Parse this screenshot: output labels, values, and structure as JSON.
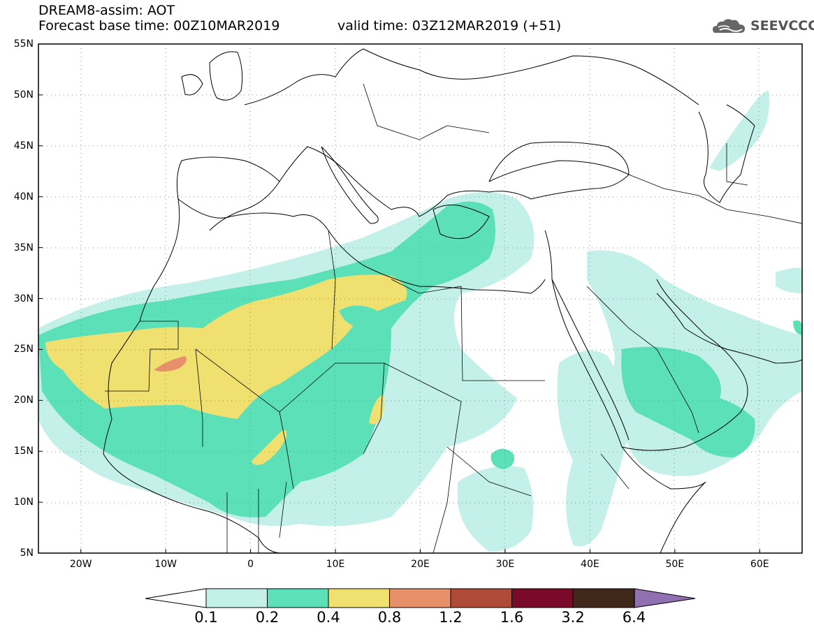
{
  "header": {
    "title": "DREAM8-assim: AOT",
    "base_time": "Forecast base time: 00Z10MAR2019",
    "valid_time": "valid time: 03Z12MAR2019 (+51)",
    "logo_text": "SEEVCCC"
  },
  "map": {
    "variable": "AOT",
    "lat_range": [
      5,
      55
    ],
    "lon_range": [
      -25,
      65
    ],
    "lat_labels": [
      "55N",
      "50N",
      "45N",
      "40N",
      "35N",
      "30N",
      "25N",
      "20N",
      "15N",
      "10N",
      "5N"
    ],
    "lat_values": [
      55,
      50,
      45,
      40,
      35,
      30,
      25,
      20,
      15,
      10,
      5
    ],
    "lon_labels": [
      "20W",
      "10W",
      "0",
      "10E",
      "20E",
      "30E",
      "40E",
      "50E",
      "60E"
    ],
    "lon_values": [
      -20,
      -10,
      0,
      10,
      20,
      30,
      40,
      50,
      60
    ],
    "grid": "dotted"
  },
  "colorbar": {
    "labels": [
      "0.1",
      "0.2",
      "0.4",
      "0.8",
      "1.2",
      "1.6",
      "3.2",
      "6.4"
    ],
    "colors": [
      "#c3f0e8",
      "#5ce0b8",
      "#f0e070",
      "#e8906a",
      "#b04a38",
      "#7a0a2a",
      "#40281a",
      "#9070b0"
    ]
  }
}
